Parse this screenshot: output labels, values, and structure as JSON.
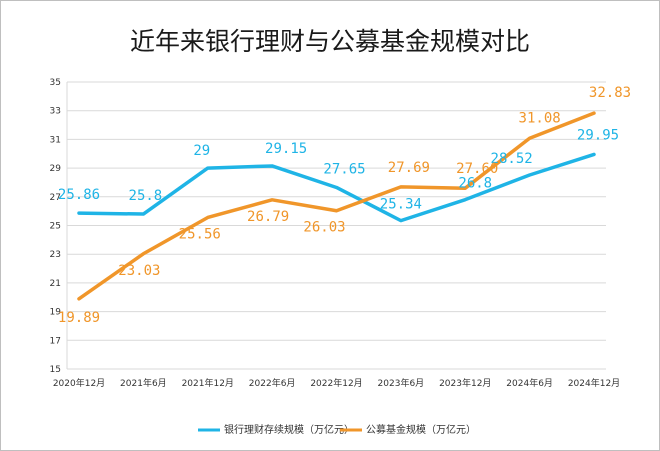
{
  "chart_data": {
    "type": "line",
    "title": "近年来银行理财与公募基金规模对比",
    "categories": [
      "2020年12月",
      "2021年6月",
      "2021年12月",
      "2022年6月",
      "2022年12月",
      "2023年6月",
      "2023年12月",
      "2024年6月",
      "2024年12月"
    ],
    "yticks": [
      "15",
      "17",
      "19",
      "21",
      "23",
      "25",
      "27",
      "29",
      "31",
      "33",
      "35"
    ],
    "ylim": [
      15,
      35
    ],
    "grid": true,
    "legend_position": "bottom",
    "series": [
      {
        "name": "银行理财存续规模（万亿元）",
        "color": "#1fb4e6",
        "values": [
          25.86,
          25.8,
          29,
          29.15,
          27.65,
          25.34,
          26.8,
          28.52,
          29.95
        ],
        "labels": [
          "25.86",
          "25.8",
          "29",
          "29.15",
          "27.65",
          "25.34",
          "26.8",
          "28.52",
          "29.95"
        ]
      },
      {
        "name": "公募基金规模（万亿元）",
        "color": "#f0962a",
        "values": [
          19.89,
          23.03,
          25.56,
          26.79,
          26.03,
          27.69,
          27.6,
          31.08,
          32.83
        ],
        "labels": [
          "19.89",
          "23.03",
          "25.56",
          "26.79",
          "26.03",
          "27.69",
          "27.60",
          "31.08",
          "32.83"
        ]
      }
    ]
  }
}
